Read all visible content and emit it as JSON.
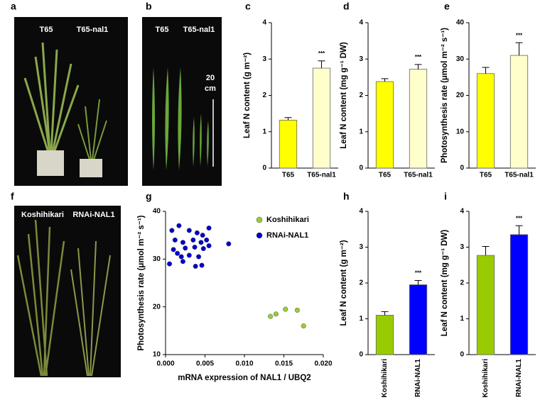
{
  "panel_labels": [
    "a",
    "b",
    "c",
    "d",
    "e",
    "f",
    "g",
    "h",
    "i"
  ],
  "photo_a": {
    "left": "T65",
    "right": "T65-nal1"
  },
  "photo_b": {
    "left": "T65",
    "right": "T65-nal1",
    "scale": [
      "20",
      "cm"
    ]
  },
  "photo_f": {
    "left": "Koshihikari",
    "right": "RNAi-NAL1"
  },
  "chart_data": [
    {
      "type": "bar",
      "y_label": "Leaf N content (g m⁻²)",
      "categories": [
        "T65",
        "T65-nal1"
      ],
      "values": [
        1.32,
        2.75
      ],
      "errors": [
        0.07,
        0.2
      ],
      "colors": [
        "#ffff00",
        "#ffffcc"
      ],
      "annotations": [
        null,
        "***"
      ],
      "ylim": [
        0,
        4
      ],
      "yticks": [
        0,
        1,
        2,
        3,
        4
      ]
    },
    {
      "type": "bar",
      "y_label": "Leaf N content (mg g⁻¹ DW)",
      "categories": [
        "T65",
        "T65-nal1"
      ],
      "values": [
        2.38,
        2.72
      ],
      "errors": [
        0.08,
        0.13
      ],
      "colors": [
        "#ffff00",
        "#ffffcc"
      ],
      "annotations": [
        null,
        "***"
      ],
      "ylim": [
        0,
        4
      ],
      "yticks": [
        0,
        1,
        2,
        3,
        4
      ]
    },
    {
      "type": "bar",
      "y_label": "Photosynthesis rate (μmol m⁻² s⁻¹)",
      "categories": [
        "T65",
        "T65-nal1"
      ],
      "values": [
        26,
        31
      ],
      "errors": [
        1.7,
        3.5
      ],
      "colors": [
        "#ffff00",
        "#ffffcc"
      ],
      "annotations": [
        null,
        "***"
      ],
      "ylim": [
        0,
        40
      ],
      "yticks": [
        0,
        10,
        20,
        30,
        40
      ]
    },
    {
      "type": "scatter",
      "x_label": "mRNA expression of NAL1 / UBQ2",
      "y_label": "Photosynthesis rate (μmol m⁻² s⁻¹)",
      "xlim": [
        0,
        0.02
      ],
      "xticks": [
        {
          "value": 0,
          "label": "0.000"
        },
        {
          "value": 0.005,
          "label": "0.005"
        },
        {
          "value": 0.01,
          "label": "0.010"
        },
        {
          "value": 0.015,
          "label": "0.015"
        },
        {
          "value": 0.02,
          "label": "0.020"
        }
      ],
      "ylim": [
        10,
        40
      ],
      "yticks": [
        10,
        20,
        30,
        40
      ],
      "legend": "top-right",
      "series": [
        {
          "name": "Koshihikari",
          "color": "#99cc33",
          "x": [
            0.0133,
            0.014,
            0.0152,
            0.0167,
            0.0175
          ],
          "values": [
            18.0,
            18.5,
            19.5,
            19.3,
            16.0
          ]
        },
        {
          "name": "RNAi-NAL1",
          "color": "#0000cc",
          "x": [
            0.0008,
            0.0017,
            0.003,
            0.004,
            0.0047,
            0.0055,
            0.0012,
            0.0022,
            0.0035,
            0.0045,
            0.0052,
            0.008,
            0.001,
            0.0025,
            0.0037,
            0.0048,
            0.0055,
            0.0015,
            0.002,
            0.003,
            0.0042,
            0.0005,
            0.0022,
            0.0038,
            0.0046
          ],
          "values": [
            36.0,
            37.0,
            36.0,
            35.5,
            35.0,
            36.5,
            34.0,
            33.5,
            34.0,
            33.5,
            34.0,
            33.2,
            32.0,
            32.3,
            32.5,
            32.2,
            32.8,
            31.2,
            30.5,
            30.8,
            30.5,
            29.0,
            29.5,
            28.5,
            28.7
          ]
        }
      ]
    },
    {
      "type": "bar",
      "y_label": "Leaf N content (g m⁻²)",
      "categories": [
        "Koshihikari",
        "RNAi-NAL1"
      ],
      "values": [
        1.1,
        1.95
      ],
      "errors": [
        0.1,
        0.12
      ],
      "colors": [
        "#99cc00",
        "#0000ff"
      ],
      "annotations": [
        null,
        "***"
      ],
      "ylim": [
        0,
        4
      ],
      "yticks": [
        0,
        1,
        2,
        3,
        4
      ]
    },
    {
      "type": "bar",
      "y_label": "Leaf N content (mg g⁻¹ DW)",
      "categories": [
        "Koshihikari",
        "RNAi-NAL1"
      ],
      "values": [
        2.77,
        3.35
      ],
      "errors": [
        0.25,
        0.25
      ],
      "colors": [
        "#99cc00",
        "#0000ff"
      ],
      "annotations": [
        null,
        "***"
      ],
      "ylim": [
        0,
        4
      ],
      "yticks": [
        0,
        1,
        2,
        3,
        4
      ]
    }
  ]
}
